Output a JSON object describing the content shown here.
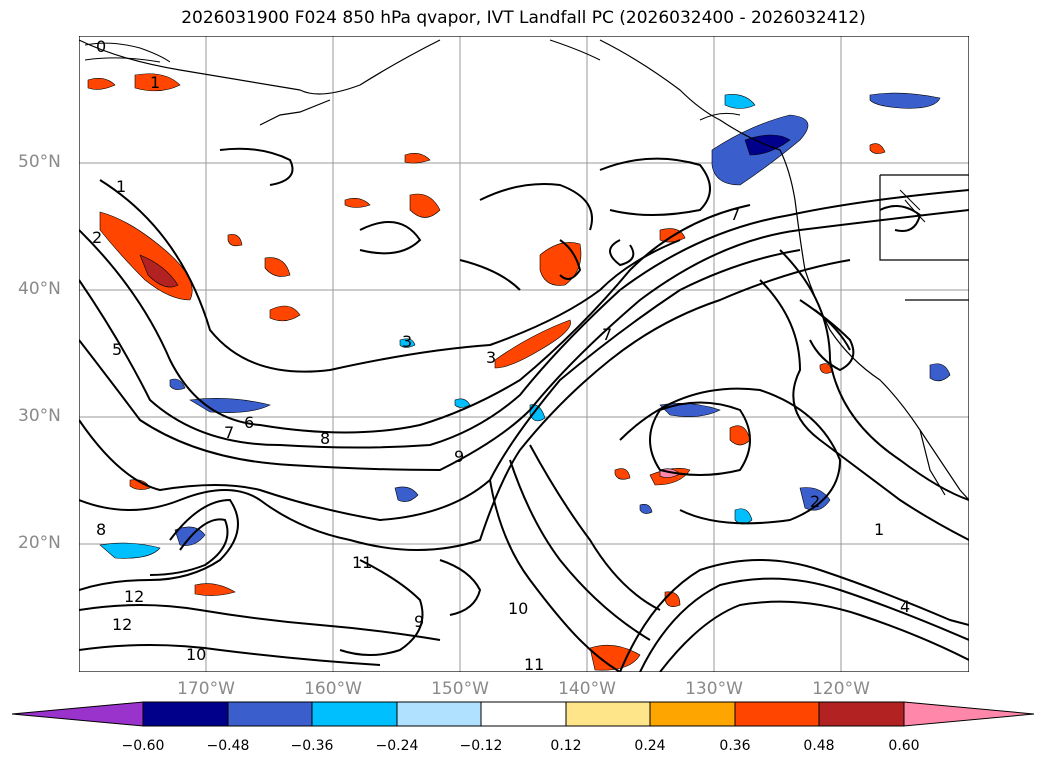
{
  "title": "2026031900 F024 850 hPa qvapor, IVT Landfall PC (2026032400 - 2026032412)",
  "lat_labels": [
    "50°N",
    "40°N",
    "30°N",
    "20°N"
  ],
  "lon_labels": [
    "170°W",
    "160°W",
    "150°W",
    "140°W",
    "130°W",
    "120°W"
  ],
  "colorbar": {
    "ticks": [
      "−0.60",
      "−0.48",
      "−0.36",
      "−0.24",
      "−0.12",
      "0.12",
      "0.24",
      "0.36",
      "0.48",
      "0.60"
    ],
    "colors": {
      "under": "#9933cc",
      "bins": [
        "#00008b",
        "#3a5fcd",
        "#00bfff",
        "#b0e2ff",
        "#ffffff",
        "#ffe58a",
        "#ffa500",
        "#ff4500",
        "#b22222"
      ],
      "over": "#ff88aa"
    },
    "extend": "both"
  },
  "map": {
    "projection": "lat-lon",
    "lon_range": [
      "180°W",
      "110°W"
    ],
    "lat_range": [
      "10°N",
      "60°N"
    ],
    "grid": true,
    "contour_color": "#000000",
    "contour_labels": [
      "0",
      "1",
      "1",
      "2",
      "3",
      "3",
      "5",
      "6",
      "7",
      "7",
      "8",
      "8",
      "9",
      "9",
      "10",
      "10",
      "11",
      "11",
      "12",
      "12",
      "1",
      "4",
      "2",
      "7"
    ]
  }
}
